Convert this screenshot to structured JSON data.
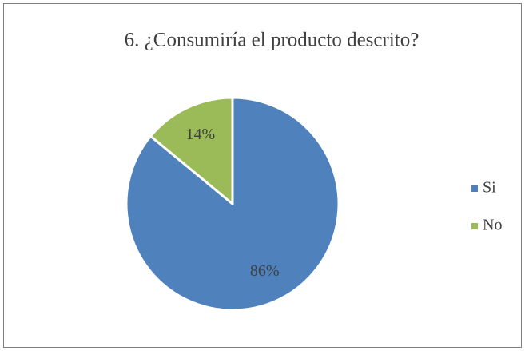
{
  "chart_data": {
    "type": "pie",
    "title": "6. ¿Consumiría el producto descrito?",
    "categories": [
      "Si",
      "No"
    ],
    "values": [
      86,
      14
    ],
    "value_labels": [
      "86%",
      "14%"
    ],
    "colors": [
      "#4f81bd",
      "#9bbb59"
    ],
    "legend": "right"
  }
}
